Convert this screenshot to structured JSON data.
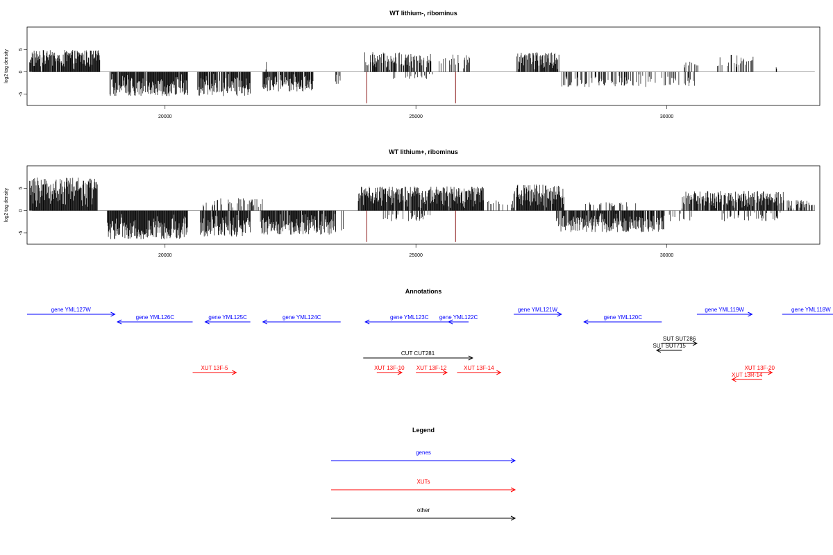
{
  "chart_data": [
    {
      "type": "bar",
      "title": "WT lithium-, ribominus",
      "ylabel": "log2 tag density",
      "xlabel": "",
      "xlim": [
        17250,
        33050
      ],
      "ylim": [
        -7.5,
        10
      ],
      "x_ticks": [
        20000,
        25000,
        30000
      ],
      "x_tick_labels": [
        "20000",
        "25000",
        "30000"
      ],
      "y_ticks": [
        -5,
        0,
        5
      ],
      "y_tick_labels": [
        "-5",
        "0",
        "5"
      ],
      "baseline_color": "#999999",
      "bar_color": "#000000",
      "marker_color": "#8B1A1A",
      "markers_x": [
        24020,
        25790
      ],
      "segments": [
        {
          "start": 17300,
          "end": 18700,
          "sign": 1,
          "max": 4.5,
          "density": 0.95
        },
        {
          "start": 18900,
          "end": 20450,
          "sign": -1,
          "max": 5.0,
          "density": 0.95
        },
        {
          "start": 20650,
          "end": 21700,
          "sign": -1,
          "max": 5.0,
          "density": 0.9
        },
        {
          "start": 21950,
          "end": 22950,
          "sign": -1,
          "max": 4.0,
          "density": 0.85
        },
        {
          "start": 22000,
          "end": 22050,
          "sign": 1,
          "max": 2.0,
          "density": 0.4
        },
        {
          "start": 23400,
          "end": 23500,
          "sign": -1,
          "max": 2.5,
          "density": 0.5
        },
        {
          "start": 23980,
          "end": 25300,
          "sign": 1,
          "max": 4.0,
          "density": 0.6
        },
        {
          "start": 24400,
          "end": 25400,
          "sign": -1,
          "max": 1.2,
          "density": 0.1
        },
        {
          "start": 25450,
          "end": 26100,
          "sign": 1,
          "max": 3.5,
          "density": 0.35
        },
        {
          "start": 27000,
          "end": 27850,
          "sign": 1,
          "max": 4.0,
          "density": 0.8
        },
        {
          "start": 27900,
          "end": 29700,
          "sign": -1,
          "max": 3.0,
          "density": 0.35
        },
        {
          "start": 29750,
          "end": 30600,
          "sign": -1,
          "max": 3.0,
          "density": 0.3
        },
        {
          "start": 30300,
          "end": 30650,
          "sign": 1,
          "max": 2.0,
          "density": 0.2
        },
        {
          "start": 31000,
          "end": 31800,
          "sign": 1,
          "max": 3.5,
          "density": 0.35
        },
        {
          "start": 32150,
          "end": 32200,
          "sign": 1,
          "max": 1.0,
          "density": 0.3
        }
      ]
    },
    {
      "type": "bar",
      "title": "WT lithium+, ribominus",
      "ylabel": "log2 tag density",
      "xlabel": "",
      "xlim": [
        17250,
        33050
      ],
      "ylim": [
        -7.5,
        10
      ],
      "x_ticks": [
        20000,
        25000,
        30000
      ],
      "x_tick_labels": [
        "20000",
        "25000",
        "30000"
      ],
      "y_ticks": [
        -5,
        0,
        5
      ],
      "y_tick_labels": [
        "-5",
        "0",
        "5"
      ],
      "baseline_color": "#999999",
      "bar_color": "#000000",
      "marker_color": "#8B1A1A",
      "markers_x": [
        24020,
        25790
      ],
      "segments": [
        {
          "start": 17300,
          "end": 18650,
          "sign": 1,
          "max": 7.0,
          "density": 1.0
        },
        {
          "start": 18850,
          "end": 20450,
          "sign": -1,
          "max": 6.0,
          "density": 1.0
        },
        {
          "start": 20700,
          "end": 21700,
          "sign": -1,
          "max": 5.5,
          "density": 0.95
        },
        {
          "start": 20750,
          "end": 21950,
          "sign": 1,
          "max": 2.5,
          "density": 0.35
        },
        {
          "start": 21900,
          "end": 23400,
          "sign": -1,
          "max": 5.0,
          "density": 0.9
        },
        {
          "start": 23300,
          "end": 23550,
          "sign": -1,
          "max": 5.5,
          "density": 0.3
        },
        {
          "start": 23850,
          "end": 26350,
          "sign": 1,
          "max": 5.0,
          "density": 0.95
        },
        {
          "start": 24350,
          "end": 25300,
          "sign": -1,
          "max": 2.0,
          "density": 0.3
        },
        {
          "start": 26400,
          "end": 27000,
          "sign": 1,
          "max": 2.0,
          "density": 0.25
        },
        {
          "start": 26950,
          "end": 27950,
          "sign": 1,
          "max": 5.5,
          "density": 0.95
        },
        {
          "start": 27800,
          "end": 29950,
          "sign": -1,
          "max": 4.5,
          "density": 0.9
        },
        {
          "start": 28350,
          "end": 29400,
          "sign": 1,
          "max": 1.5,
          "density": 0.2
        },
        {
          "start": 30050,
          "end": 30500,
          "sign": -1,
          "max": 2.0,
          "density": 0.25
        },
        {
          "start": 30300,
          "end": 32350,
          "sign": 1,
          "max": 4.0,
          "density": 0.85
        },
        {
          "start": 31000,
          "end": 32300,
          "sign": -1,
          "max": 2.0,
          "density": 0.25
        },
        {
          "start": 32400,
          "end": 32950,
          "sign": 1,
          "max": 2.0,
          "density": 0.4
        }
      ]
    }
  ],
  "annotations": {
    "title": "Annotations",
    "features": [
      {
        "label": "gene YML127W",
        "start": 17250,
        "end": 19000,
        "strand": "+",
        "row": 0,
        "color": "#0000FF"
      },
      {
        "label": "gene YML126C",
        "start": 19050,
        "end": 20550,
        "strand": "-",
        "row": 1,
        "color": "#0000FF"
      },
      {
        "label": "gene YML125C",
        "start": 20800,
        "end": 21700,
        "strand": "-",
        "row": 1,
        "color": "#0000FF"
      },
      {
        "label": "gene YML124C",
        "start": 21950,
        "end": 23500,
        "strand": "-",
        "row": 1,
        "color": "#0000FF"
      },
      {
        "label": "gene YML123C",
        "start": 23990,
        "end": 25750,
        "strand": "-",
        "row": 1,
        "color": "#0000FF"
      },
      {
        "label": "gene YML122C",
        "start": 25650,
        "end": 26050,
        "strand": "-",
        "row": 1,
        "color": "#0000FF"
      },
      {
        "label": "gene YML121W",
        "start": 26950,
        "end": 27900,
        "strand": "+",
        "row": 0,
        "color": "#0000FF"
      },
      {
        "label": "gene YML120C",
        "start": 28350,
        "end": 29900,
        "strand": "-",
        "row": 1,
        "color": "#0000FF"
      },
      {
        "label": "gene YML119W",
        "start": 30600,
        "end": 31700,
        "strand": "+",
        "row": 0,
        "color": "#0000FF"
      },
      {
        "label": "gene YML118W",
        "start": 32300,
        "end": 33450,
        "strand": "+",
        "row": 0,
        "color": "#0000FF"
      },
      {
        "label": "SUT SUT286",
        "start": 29900,
        "end": 30600,
        "strand": "+",
        "row": 3,
        "color": "#000000"
      },
      {
        "label": "SUT SUT715",
        "start": 29800,
        "end": 30300,
        "strand": "-",
        "row": 4,
        "color": "#000000"
      },
      {
        "label": "CUT CUT281",
        "start": 23950,
        "end": 26130,
        "strand": "+",
        "row": 5,
        "color": "#000000"
      },
      {
        "label": "XUT 13F-5",
        "start": 20550,
        "end": 21420,
        "strand": "+",
        "row": 7,
        "color": "#FF0000"
      },
      {
        "label": "XUT 13F-10",
        "start": 24220,
        "end": 24720,
        "strand": "+",
        "row": 7,
        "color": "#FF0000"
      },
      {
        "label": "XUT 13F-12",
        "start": 25000,
        "end": 25620,
        "strand": "+",
        "row": 7,
        "color": "#FF0000"
      },
      {
        "label": "XUT 13F-14",
        "start": 25820,
        "end": 26690,
        "strand": "+",
        "row": 7,
        "color": "#FF0000"
      },
      {
        "label": "XUT 13F-20",
        "start": 31600,
        "end": 32100,
        "strand": "+",
        "row": 7,
        "color": "#FF0000"
      },
      {
        "label": "XUT 13R-14",
        "start": 31300,
        "end": 31900,
        "strand": "-",
        "row": 8,
        "color": "#FF0000"
      }
    ]
  },
  "legend": {
    "title": "Legend",
    "items": [
      {
        "label": "genes",
        "color": "#0000FF"
      },
      {
        "label": "XUTs",
        "color": "#FF0000"
      },
      {
        "label": "other",
        "color": "#000000"
      }
    ]
  }
}
